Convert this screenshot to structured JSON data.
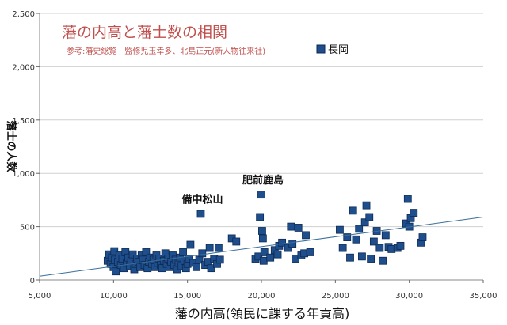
{
  "chart_data": {
    "type": "scatter",
    "title": "藩の内高と藩士数の相関",
    "subtitle": "参考:藩史総覧　監修児玉幸多、北島正元(新人物往来社)",
    "xlabel": "藩の内高(領民に課する年貢高)",
    "ylabel": "藩士の人数",
    "xlim": [
      5000,
      35000
    ],
    "ylim": [
      0,
      2500
    ],
    "x_ticks": [
      5000,
      10000,
      15000,
      20000,
      25000,
      30000,
      35000
    ],
    "x_tick_labels": [
      "5,000",
      "10,000",
      "15,000",
      "20,000",
      "25,000",
      "30,000",
      "35,000"
    ],
    "y_ticks": [
      0,
      500,
      1000,
      1500,
      2000,
      2500
    ],
    "y_tick_labels": [
      "0",
      "500",
      "1,000",
      "1,500",
      "2,000",
      "2,500"
    ],
    "grid": "horizontal",
    "legend_position": "top-right",
    "colors": {
      "marker": "#1f4e8c",
      "marker_edge": "#0d2a52",
      "trend": "#3a6f9a",
      "title": "#c0504d",
      "grid": "#d0d0d0"
    },
    "series": [
      {
        "name": "長岡",
        "points": [
          [
            9600,
            180
          ],
          [
            9700,
            240
          ],
          [
            9800,
            150
          ],
          [
            9900,
            210
          ],
          [
            10000,
            120
          ],
          [
            10050,
            270
          ],
          [
            10100,
            190
          ],
          [
            10150,
            80
          ],
          [
            10300,
            170
          ],
          [
            10400,
            230
          ],
          [
            10500,
            140
          ],
          [
            10600,
            200
          ],
          [
            10700,
            110
          ],
          [
            10800,
            260
          ],
          [
            10900,
            160
          ],
          [
            11000,
            210
          ],
          [
            11100,
            130
          ],
          [
            11200,
            180
          ],
          [
            11300,
            240
          ],
          [
            11400,
            100
          ],
          [
            11500,
            150
          ],
          [
            11600,
            200
          ],
          [
            11700,
            170
          ],
          [
            11800,
            120
          ],
          [
            11900,
            230
          ],
          [
            12000,
            190
          ],
          [
            12100,
            140
          ],
          [
            12200,
            260
          ],
          [
            12300,
            110
          ],
          [
            12400,
            170
          ],
          [
            12500,
            210
          ],
          [
            12600,
            150
          ],
          [
            12700,
            190
          ],
          [
            12800,
            120
          ],
          [
            12900,
            230
          ],
          [
            13000,
            160
          ],
          [
            13100,
            200
          ],
          [
            13200,
            140
          ],
          [
            13300,
            110
          ],
          [
            13400,
            180
          ],
          [
            13500,
            250
          ],
          [
            13600,
            150
          ],
          [
            13700,
            200
          ],
          [
            13800,
            120
          ],
          [
            13900,
            170
          ],
          [
            14000,
            230
          ],
          [
            14100,
            140
          ],
          [
            14200,
            190
          ],
          [
            14300,
            100
          ],
          [
            14400,
            160
          ],
          [
            14500,
            210
          ],
          [
            14600,
            130
          ],
          [
            14700,
            260
          ],
          [
            14800,
            180
          ],
          [
            14900,
            110
          ],
          [
            15000,
            150
          ],
          [
            15100,
            200
          ],
          [
            15200,
            330
          ],
          [
            15400,
            160
          ],
          [
            15600,
            120
          ],
          [
            15800,
            190
          ],
          [
            15900,
            620
          ],
          [
            16000,
            250
          ],
          [
            16200,
            140
          ],
          [
            16400,
            170
          ],
          [
            16500,
            300
          ],
          [
            16600,
            110
          ],
          [
            16800,
            200
          ],
          [
            17000,
            150
          ],
          [
            17100,
            300
          ],
          [
            17200,
            190
          ],
          [
            18000,
            390
          ],
          [
            18300,
            360
          ],
          [
            19600,
            200
          ],
          [
            19800,
            220
          ],
          [
            19900,
            590
          ],
          [
            20000,
            800
          ],
          [
            20050,
            460
          ],
          [
            20100,
            390
          ],
          [
            20150,
            180
          ],
          [
            20200,
            260
          ],
          [
            20600,
            210
          ],
          [
            20900,
            280
          ],
          [
            21100,
            240
          ],
          [
            21200,
            320
          ],
          [
            21400,
            350
          ],
          [
            21800,
            300
          ],
          [
            22000,
            500
          ],
          [
            22100,
            340
          ],
          [
            22300,
            200
          ],
          [
            22500,
            490
          ],
          [
            22700,
            230
          ],
          [
            22900,
            250
          ],
          [
            23000,
            420
          ],
          [
            23300,
            260
          ],
          [
            25300,
            470
          ],
          [
            25500,
            300
          ],
          [
            25800,
            400
          ],
          [
            26000,
            210
          ],
          [
            26200,
            650
          ],
          [
            26400,
            380
          ],
          [
            26600,
            480
          ],
          [
            26800,
            220
          ],
          [
            27000,
            540
          ],
          [
            27100,
            700
          ],
          [
            27300,
            590
          ],
          [
            27400,
            200
          ],
          [
            27600,
            360
          ],
          [
            27800,
            460
          ],
          [
            28000,
            300
          ],
          [
            28200,
            180
          ],
          [
            28400,
            420
          ],
          [
            28600,
            310
          ],
          [
            28800,
            290
          ],
          [
            29200,
            300
          ],
          [
            29400,
            320
          ],
          [
            29800,
            530
          ],
          [
            29900,
            760
          ],
          [
            30000,
            500
          ],
          [
            30100,
            580
          ],
          [
            30300,
            630
          ],
          [
            30800,
            350
          ],
          [
            30900,
            400
          ]
        ]
      }
    ],
    "trendline": {
      "x": [
        5000,
        35000
      ],
      "y": [
        35,
        590
      ]
    },
    "annotations": [
      {
        "text": "備中松山",
        "x": 15900,
        "y": 620
      },
      {
        "text": "肥前鹿島",
        "x": 20000,
        "y": 800
      }
    ]
  }
}
